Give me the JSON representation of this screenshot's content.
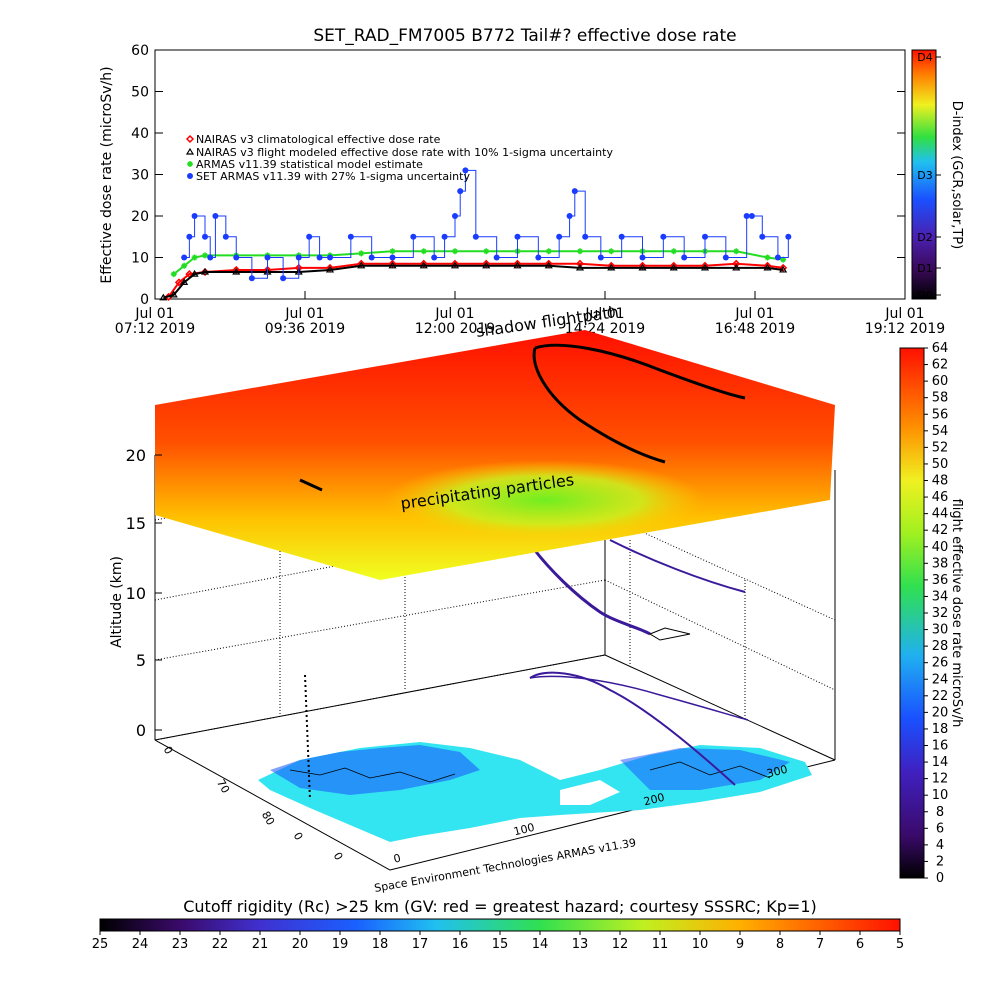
{
  "colors": {
    "nairas_clim": "#ff0000",
    "nairas_flight": "#000000",
    "armas_stat": "#22dd22",
    "set_armas": "#1a3cff",
    "map_land": "#33e5f0",
    "flightpath": "#3a1a9a"
  },
  "chart_data": [
    {
      "type": "scatter",
      "title": "SET_RAD_FM7005   B772 Tail#? effective dose rate",
      "ylabel": "Effective dose rate (microSv/h)",
      "ylim": [
        0,
        60
      ],
      "y_ticks": [
        "0",
        "10",
        "20",
        "30",
        "40",
        "50",
        "60"
      ],
      "x_ticks": [
        {
          "date": "Jul 01",
          "time": "07:12 2019"
        },
        {
          "date": "Jul 01",
          "time": "09:36 2019"
        },
        {
          "date": "Jul 01",
          "time": "12:00 2019"
        },
        {
          "date": "Jul 01",
          "time": "14:24 2019"
        },
        {
          "date": "Jul 01",
          "time": "16:48 2019"
        },
        {
          "date": "Jul 01",
          "time": "19:12 2019"
        }
      ],
      "xlim": [
        "07:12",
        "19:12"
      ],
      "legend_position": "top-left",
      "series": [
        {
          "name": "NAIRAS v3 climatological effective dose rate",
          "marker": "diamond",
          "x": [
            "07:25",
            "07:35",
            "07:45",
            "08:00",
            "08:30",
            "09:00",
            "09:30",
            "10:00",
            "10:30",
            "11:00",
            "11:30",
            "12:00",
            "12:30",
            "13:00",
            "13:30",
            "14:00",
            "14:30",
            "15:00",
            "15:30",
            "16:00",
            "16:30",
            "17:00",
            "17:15"
          ],
          "values": [
            0.5,
            4,
            6,
            6.5,
            7,
            7,
            7.5,
            7.5,
            8.5,
            8.5,
            8.5,
            8.5,
            8.5,
            8.5,
            8.5,
            8.5,
            8,
            8,
            8,
            8,
            8.5,
            8,
            7.5
          ]
        },
        {
          "name": "NAIRAS v3 flight modeled effective dose rate with 10% 1-sigma uncertainty",
          "marker": "triangle",
          "x": [
            "07:20",
            "07:30",
            "07:40",
            "07:50",
            "08:00",
            "08:30",
            "09:00",
            "09:30",
            "10:00",
            "10:30",
            "11:00",
            "11:30",
            "12:00",
            "12:30",
            "13:00",
            "13:30",
            "14:00",
            "14:30",
            "15:00",
            "15:30",
            "16:00",
            "16:30",
            "17:00",
            "17:15"
          ],
          "values": [
            0.3,
            1,
            4,
            6,
            6.5,
            6.5,
            6.5,
            6.5,
            7,
            8,
            8,
            8,
            8,
            8,
            8,
            8,
            7.5,
            7.5,
            7.5,
            7.5,
            7.5,
            7.5,
            7.5,
            7
          ]
        },
        {
          "name": "ARMAS v11.39 statistical model estimate",
          "marker": "asterisk",
          "x": [
            "07:30",
            "07:40",
            "07:50",
            "08:00",
            "08:30",
            "09:00",
            "09:30",
            "10:00",
            "10:30",
            "11:00",
            "11:30",
            "12:00",
            "12:30",
            "13:00",
            "13:30",
            "14:00",
            "14:30",
            "15:00",
            "15:30",
            "16:00",
            "16:30",
            "17:00",
            "17:15"
          ],
          "values": [
            6,
            8,
            10,
            10.5,
            10.5,
            10.5,
            10.5,
            10.5,
            11,
            11.5,
            11.5,
            11.5,
            11.5,
            11.5,
            11.5,
            11.5,
            11.5,
            11.5,
            11.5,
            11.5,
            11.5,
            10,
            9.5
          ]
        },
        {
          "name": "SET ARMAS v11.39 with 27% 1-sigma uncertainty",
          "marker": "circle",
          "x": [
            "07:40",
            "07:45",
            "07:50",
            "08:00",
            "08:05",
            "08:10",
            "08:20",
            "08:30",
            "08:45",
            "09:00",
            "09:15",
            "09:30",
            "09:40",
            "09:50",
            "10:00",
            "10:20",
            "10:40",
            "11:00",
            "11:20",
            "11:40",
            "11:50",
            "12:00",
            "12:05",
            "12:10",
            "12:20",
            "12:40",
            "13:00",
            "13:20",
            "13:40",
            "13:50",
            "13:55",
            "14:05",
            "14:20",
            "14:40",
            "15:00",
            "15:20",
            "15:40",
            "16:00",
            "16:20",
            "16:40",
            "16:45",
            "16:55",
            "17:10",
            "17:20"
          ],
          "values": [
            10,
            15,
            20,
            15,
            10,
            20,
            15,
            10,
            5,
            10,
            5,
            10,
            15,
            10,
            10,
            15,
            10,
            10,
            15,
            10,
            15,
            20,
            26,
            31,
            15,
            10,
            15,
            10,
            15,
            20,
            26,
            15,
            10,
            15,
            10,
            15,
            10,
            15,
            10,
            20,
            20,
            15,
            10,
            15
          ]
        }
      ]
    },
    {
      "type": "heatmap",
      "title": "",
      "zlabel": "Altitude (km)",
      "z_ticks": [
        "0",
        "5",
        "10",
        "15",
        "20"
      ],
      "lat_ticks": [
        "0",
        "70",
        "80",
        "0",
        "0"
      ],
      "lon_ticks": [
        "0",
        "100",
        "200",
        "300"
      ],
      "surface_label": "shadow flightpath",
      "layer_label": "precipitating particles",
      "credit": "Space Environment Technologies ARMAS v11.39",
      "colorbar": {
        "label": "flight effective dose rate microSv/h",
        "range": [
          0,
          64
        ],
        "ticks": [
          "0",
          "2",
          "4",
          "6",
          "8",
          "10",
          "12",
          "14",
          "16",
          "18",
          "20",
          "22",
          "24",
          "26",
          "28",
          "30",
          "32",
          "34",
          "36",
          "38",
          "40",
          "42",
          "44",
          "46",
          "48",
          "50",
          "52",
          "54",
          "56",
          "58",
          "60",
          "62",
          "64"
        ]
      }
    },
    {
      "type": "heatmap",
      "title": "Cutoff rigidity (Rc) >25 km (GV: red = greatest hazard; courtesy SSSRC; Kp=1)",
      "colorbar": {
        "range": [
          25,
          5
        ],
        "ticks": [
          "25",
          "24",
          "23",
          "22",
          "21",
          "20",
          "19",
          "18",
          "17",
          "16",
          "15",
          "14",
          "13",
          "12",
          "11",
          "10",
          "9",
          "8",
          "7",
          "6",
          "5"
        ]
      }
    }
  ],
  "dindex_bar": {
    "label": "D-index (GCR,solar,TP)",
    "ticks": [
      "D0",
      "D1",
      "D2",
      "D3",
      "D4"
    ]
  }
}
